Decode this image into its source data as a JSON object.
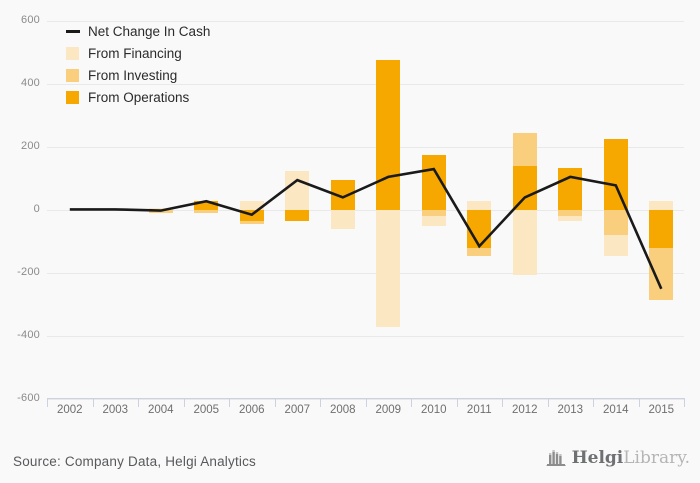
{
  "chart_data": {
    "type": "combo-stacked-bar-line",
    "categories": [
      "2002",
      "2003",
      "2004",
      "2005",
      "2006",
      "2007",
      "2008",
      "2009",
      "2010",
      "2011",
      "2012",
      "2013",
      "2014",
      "2015"
    ],
    "bar_series": [
      {
        "key": "financing",
        "name": "From Financing",
        "color": "#FBE8C3",
        "values": [
          0,
          0,
          5,
          0,
          30,
          125,
          -60,
          -370,
          -30,
          30,
          -205,
          -15,
          -65,
          30
        ]
      },
      {
        "key": "investing",
        "name": "From Investing",
        "color": "#F9CF7E",
        "values": [
          0,
          0,
          -10,
          -10,
          -10,
          0,
          0,
          0,
          -20,
          -25,
          105,
          -20,
          -80,
          -165
        ]
      },
      {
        "key": "operations",
        "name": "From Operations",
        "color": "#F7A800",
        "values": [
          0,
          0,
          0,
          30,
          -35,
          -35,
          95,
          475,
          175,
          -120,
          140,
          135,
          225,
          -120
        ]
      }
    ],
    "line_series": {
      "name": "Net Change In Cash",
      "color": "#1a1a1a",
      "values": [
        2,
        2,
        -2,
        28,
        -15,
        95,
        40,
        105,
        130,
        -115,
        40,
        105,
        78,
        -250
      ]
    },
    "stack_order": [
      "operations",
      "investing",
      "financing"
    ],
    "ylim": [
      -600,
      600
    ],
    "yticks": [
      600,
      400,
      200,
      0,
      -200,
      -400,
      -600
    ],
    "grid": true,
    "legend_position": "top-left",
    "title": "",
    "xlabel": "",
    "ylabel": ""
  },
  "footer": {
    "source": "Source: Company Data, Helgi Analytics",
    "logo_brand": "Helgi",
    "logo_suffix": "Library."
  },
  "colors": {
    "background": "#f9f9f9",
    "grid": "#e9e9e9",
    "axis": "#ccd2e2",
    "tick_text": "#6f6f6f"
  }
}
